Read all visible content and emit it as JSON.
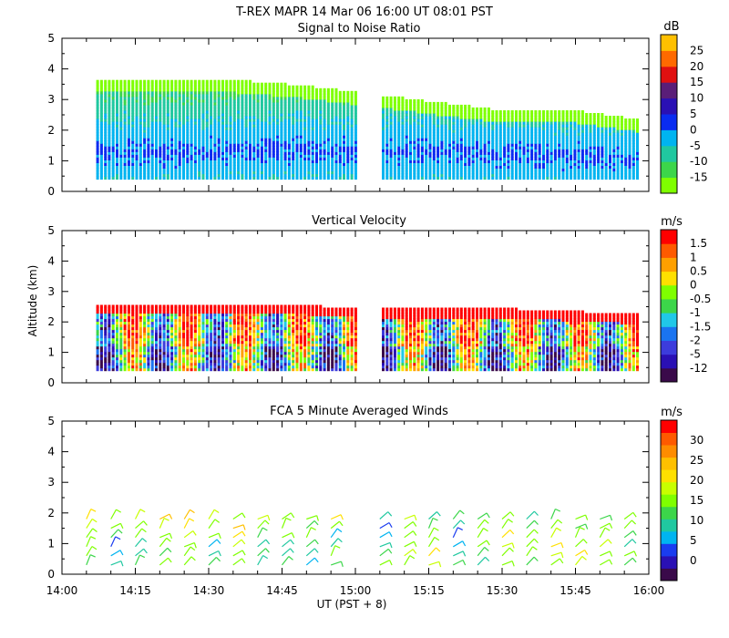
{
  "header": {
    "title": "T-REX   MAPR 14 Mar 06   16:00 UT   08:01   PST"
  },
  "ylabel": "Altitude (km)",
  "xlabel": "UT  (PST + 8)",
  "x_ticks": [
    "14:00",
    "14:15",
    "14:30",
    "14:45",
    "15:00",
    "15:15",
    "15:30",
    "15:45",
    "16:00"
  ],
  "y_ticks": [
    "0",
    "1",
    "2",
    "3",
    "4",
    "5"
  ],
  "chart_data": [
    {
      "type": "heatmap",
      "title": "Signal to Noise Ratio",
      "unit": "dB",
      "ylim": [
        0,
        5
      ],
      "x_range": [
        "14:00",
        "16:00"
      ],
      "data_gap": [
        "15:00",
        "15:05"
      ],
      "levels": [
        -15,
        -10,
        -5,
        0,
        5,
        10,
        15,
        20,
        25
      ],
      "colors": [
        "#7fff00",
        "#3cd64a",
        "#20c8a0",
        "#00b4f0",
        "#0a2cf0",
        "#2a10b4",
        "#5a1e78",
        "#e01010",
        "#ff6a00",
        "#ffc000"
      ],
      "profile": {
        "time_min": [
          8,
          20,
          35,
          50,
          60,
          70,
          90,
          105,
          118
        ],
        "echo_top_km": [
          3.6,
          3.6,
          3.6,
          3.4,
          3.2,
          3.0,
          2.6,
          2.6,
          2.3
        ],
        "core_center_km": [
          1.3,
          1.2,
          1.3,
          1.3,
          1.3,
          1.3,
          1.2,
          1.1,
          1.0
        ]
      }
    },
    {
      "type": "heatmap",
      "title": "Vertical Velocity",
      "unit": "m/s",
      "ylim": [
        0,
        5
      ],
      "x_range": [
        "14:00",
        "16:00"
      ],
      "data_gap": [
        "15:00",
        "15:05"
      ],
      "levels": [
        -12,
        -5,
        -2,
        -1.5,
        -1,
        -0.5,
        0,
        0.5,
        1,
        1.5
      ],
      "colors": [
        "#3a0a4a",
        "#2a10b4",
        "#3c3cdc",
        "#1a74f0",
        "#20c8e8",
        "#3cd64a",
        "#7fff00",
        "#ffe000",
        "#ffa000",
        "#ff5a00",
        "#ff0000"
      ],
      "profile": {
        "time_min": [
          8,
          20,
          35,
          50,
          60,
          70,
          90,
          105,
          118
        ],
        "echo_top_km": [
          2.5,
          2.5,
          2.5,
          2.5,
          2.4,
          2.4,
          2.4,
          2.3,
          2.2
        ]
      }
    },
    {
      "type": "scatter",
      "title": "FCA 5 Minute Averaged Winds",
      "unit": "m/s",
      "ylim": [
        0,
        5
      ],
      "x_range": [
        "14:00",
        "16:00"
      ],
      "levels": [
        0,
        5,
        10,
        15,
        20,
        25,
        30
      ],
      "colors": [
        "#3a0a4a",
        "#2a10b4",
        "#1a3cf0",
        "#00b4f0",
        "#20c8a0",
        "#3cd64a",
        "#7fff00",
        "#c8ff00",
        "#ffe000",
        "#ffc000",
        "#ff8c00",
        "#ff5a00",
        "#ff0000"
      ],
      "barb_times_min": [
        5,
        10,
        15,
        20,
        25,
        30,
        35,
        40,
        45,
        50,
        55,
        65,
        70,
        75,
        80,
        85,
        90,
        95,
        100,
        105,
        110,
        115
      ],
      "barb_heights_km": [
        0.3,
        0.6,
        0.9,
        1.2,
        1.5,
        1.8
      ],
      "barb_speeds_ms": [
        [
          12,
          14,
          15,
          16,
          18,
          20
        ],
        [
          10,
          8,
          6,
          12,
          14,
          16
        ],
        [
          12,
          11,
          10,
          14,
          16,
          18
        ],
        [
          14,
          13,
          15,
          16,
          18,
          22
        ],
        [
          16,
          15,
          14,
          18,
          20,
          22
        ],
        [
          12,
          10,
          8,
          14,
          16,
          18
        ],
        [
          14,
          16,
          18,
          20,
          22,
          16
        ],
        [
          10,
          12,
          11,
          13,
          15,
          17
        ],
        [
          12,
          10,
          9,
          14,
          16,
          15
        ],
        [
          8,
          10,
          12,
          14,
          13,
          15
        ],
        [
          12,
          14,
          10,
          8,
          14,
          20
        ],
        [
          14,
          12,
          10,
          8,
          6,
          10
        ],
        [
          16,
          18,
          15,
          14,
          16,
          18
        ],
        [
          18,
          20,
          16,
          14,
          12,
          10
        ],
        [
          12,
          10,
          8,
          6,
          10,
          12
        ],
        [
          10,
          12,
          14,
          16,
          14,
          12
        ],
        [
          14,
          16,
          18,
          20,
          16,
          14
        ],
        [
          12,
          14,
          16,
          14,
          12,
          10
        ],
        [
          16,
          18,
          20,
          18,
          14,
          12
        ],
        [
          18,
          20,
          16,
          14,
          12,
          14
        ],
        [
          14,
          16,
          18,
          16,
          14,
          12
        ],
        [
          12,
          14,
          10,
          12,
          14,
          16
        ]
      ]
    }
  ],
  "colorbars": [
    {
      "unit": "dB",
      "labels": [
        "25",
        "20",
        "15",
        "10",
        "5",
        "0",
        "-5",
        "-10",
        "-15"
      ]
    },
    {
      "unit": "m/s",
      "labels": [
        "1.5",
        "1",
        "0.5",
        "0",
        "-0.5",
        "-1",
        "-1.5",
        "-2",
        "-5",
        "-12"
      ]
    },
    {
      "unit": "m/s",
      "labels": [
        "30",
        "25",
        "20",
        "15",
        "10",
        "5",
        "0"
      ]
    }
  ]
}
